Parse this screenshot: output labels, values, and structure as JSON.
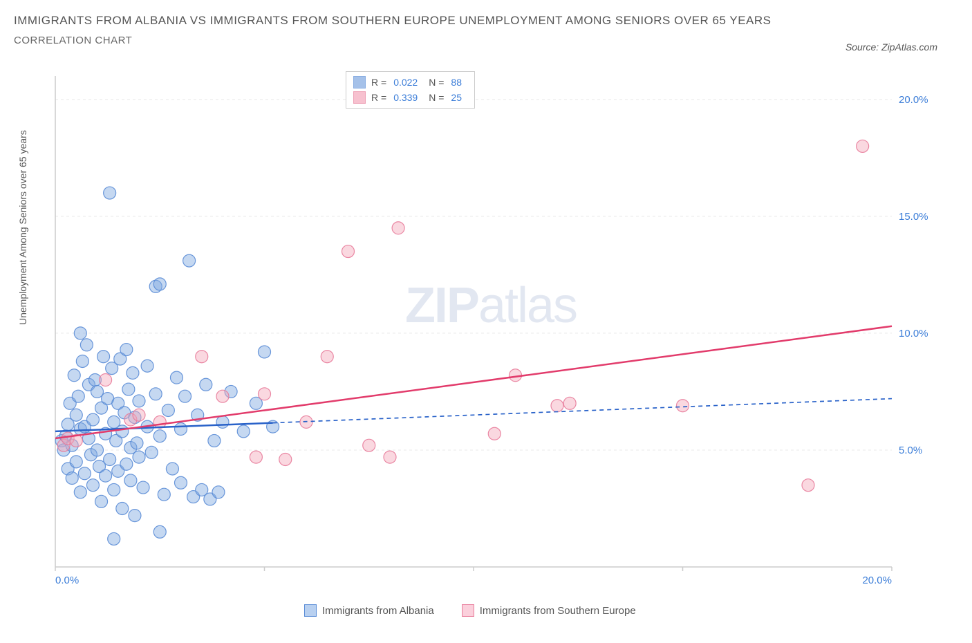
{
  "title_line1": "IMMIGRANTS FROM ALBANIA VS IMMIGRANTS FROM SOUTHERN EUROPE UNEMPLOYMENT AMONG SENIORS OVER 65 YEARS",
  "title_line2": "CORRELATION CHART",
  "source_label": "Source: ZipAtlas.com",
  "y_axis_label": "Unemployment Among Seniors over 65 years",
  "watermark_bold": "ZIP",
  "watermark_light": "atlas",
  "chart": {
    "type": "scatter",
    "xlim": [
      0,
      20
    ],
    "ylim": [
      0,
      21
    ],
    "x_ticks": [
      0,
      20
    ],
    "x_tick_labels": [
      "0.0%",
      "20.0%"
    ],
    "y_ticks": [
      5,
      10,
      15,
      20
    ],
    "y_tick_labels": [
      "5.0%",
      "10.0%",
      "15.0%",
      "20.0%"
    ],
    "y_tick_color": "#3b7dd8",
    "x_tick_color": "#3b7dd8",
    "grid_color": "#e8e8e8",
    "axis_color": "#cccccc",
    "background_color": "#ffffff",
    "marker_radius": 9,
    "marker_opacity": 0.45,
    "marker_stroke_opacity": 0.9,
    "series": [
      {
        "name": "Immigrants from Albania",
        "color_fill": "#7fa8e0",
        "color_stroke": "#5a8cd6",
        "R": "0.022",
        "N": "88",
        "trend": {
          "x1": 0,
          "y1": 5.8,
          "x2": 20,
          "y2": 7.2,
          "solid_until_x": 5.2,
          "stroke_width": 2.5,
          "color": "#2962c9",
          "dash": "6,5"
        },
        "points": [
          [
            0.15,
            5.4
          ],
          [
            0.2,
            5.0
          ],
          [
            0.25,
            5.6
          ],
          [
            0.3,
            6.1
          ],
          [
            0.3,
            4.2
          ],
          [
            0.35,
            7.0
          ],
          [
            0.4,
            5.2
          ],
          [
            0.4,
            3.8
          ],
          [
            0.45,
            8.2
          ],
          [
            0.5,
            6.5
          ],
          [
            0.5,
            4.5
          ],
          [
            0.55,
            7.3
          ],
          [
            0.6,
            5.9
          ],
          [
            0.6,
            3.2
          ],
          [
            0.65,
            8.8
          ],
          [
            0.7,
            6.0
          ],
          [
            0.7,
            4.0
          ],
          [
            0.75,
            9.5
          ],
          [
            0.8,
            5.5
          ],
          [
            0.8,
            7.8
          ],
          [
            0.85,
            4.8
          ],
          [
            0.9,
            6.3
          ],
          [
            0.9,
            3.5
          ],
          [
            0.95,
            8.0
          ],
          [
            1.0,
            5.0
          ],
          [
            1.0,
            7.5
          ],
          [
            1.05,
            4.3
          ],
          [
            1.1,
            6.8
          ],
          [
            1.1,
            2.8
          ],
          [
            1.15,
            9.0
          ],
          [
            1.2,
            5.7
          ],
          [
            1.2,
            3.9
          ],
          [
            1.25,
            7.2
          ],
          [
            1.3,
            4.6
          ],
          [
            1.3,
            16.0
          ],
          [
            1.35,
            8.5
          ],
          [
            1.4,
            6.2
          ],
          [
            1.4,
            3.3
          ],
          [
            1.45,
            5.4
          ],
          [
            1.5,
            7.0
          ],
          [
            1.5,
            4.1
          ],
          [
            1.55,
            8.9
          ],
          [
            1.6,
            5.8
          ],
          [
            1.6,
            2.5
          ],
          [
            1.65,
            6.6
          ],
          [
            1.7,
            4.4
          ],
          [
            1.7,
            9.3
          ],
          [
            1.75,
            7.6
          ],
          [
            1.8,
            5.1
          ],
          [
            1.8,
            3.7
          ],
          [
            1.85,
            8.3
          ],
          [
            1.9,
            6.4
          ],
          [
            1.9,
            2.2
          ],
          [
            1.95,
            5.3
          ],
          [
            2.0,
            7.1
          ],
          [
            2.0,
            4.7
          ],
          [
            2.1,
            3.4
          ],
          [
            2.2,
            6.0
          ],
          [
            2.2,
            8.6
          ],
          [
            2.3,
            4.9
          ],
          [
            2.4,
            7.4
          ],
          [
            2.4,
            12.0
          ],
          [
            2.5,
            5.6
          ],
          [
            2.5,
            12.1
          ],
          [
            2.6,
            3.1
          ],
          [
            2.7,
            6.7
          ],
          [
            2.8,
            4.2
          ],
          [
            2.9,
            8.1
          ],
          [
            3.0,
            5.9
          ],
          [
            3.0,
            3.6
          ],
          [
            3.1,
            7.3
          ],
          [
            3.2,
            13.1
          ],
          [
            3.3,
            3.0
          ],
          [
            3.4,
            6.5
          ],
          [
            3.5,
            3.3
          ],
          [
            3.6,
            7.8
          ],
          [
            3.7,
            2.9
          ],
          [
            3.8,
            5.4
          ],
          [
            3.9,
            3.2
          ],
          [
            4.0,
            6.2
          ],
          [
            4.2,
            7.5
          ],
          [
            4.5,
            5.8
          ],
          [
            4.8,
            7.0
          ],
          [
            5.0,
            9.2
          ],
          [
            5.2,
            6.0
          ],
          [
            1.4,
            1.2
          ],
          [
            2.5,
            1.5
          ],
          [
            0.6,
            10.0
          ]
        ]
      },
      {
        "name": "Immigrants from Southern Europe",
        "color_fill": "#f5a8bb",
        "color_stroke": "#e87b9a",
        "R": "0.339",
        "N": "25",
        "trend": {
          "x1": 0,
          "y1": 5.5,
          "x2": 20,
          "y2": 10.3,
          "solid_until_x": 20,
          "stroke_width": 2.5,
          "color": "#e23b6b",
          "dash": ""
        },
        "points": [
          [
            0.2,
            5.2
          ],
          [
            0.3,
            5.5
          ],
          [
            0.5,
            5.4
          ],
          [
            1.2,
            8.0
          ],
          [
            1.8,
            6.3
          ],
          [
            2.0,
            6.5
          ],
          [
            2.5,
            6.2
          ],
          [
            3.5,
            9.0
          ],
          [
            4.0,
            7.3
          ],
          [
            4.8,
            4.7
          ],
          [
            5.0,
            7.4
          ],
          [
            5.5,
            4.6
          ],
          [
            6.0,
            6.2
          ],
          [
            6.5,
            9.0
          ],
          [
            7.5,
            5.2
          ],
          [
            8.0,
            4.7
          ],
          [
            8.2,
            14.5
          ],
          [
            7.0,
            13.5
          ],
          [
            10.5,
            5.7
          ],
          [
            11.0,
            8.2
          ],
          [
            12.0,
            6.9
          ],
          [
            12.3,
            7.0
          ],
          [
            15.0,
            6.9
          ],
          [
            18.0,
            3.5
          ],
          [
            19.3,
            18.0
          ]
        ]
      }
    ]
  },
  "legend_bottom": [
    {
      "label": "Immigrants from Albania",
      "fill": "#b8d0f0",
      "stroke": "#5a8cd6"
    },
    {
      "label": "Immigrants from Southern Europe",
      "fill": "#fbd0dc",
      "stroke": "#e87b9a"
    }
  ]
}
